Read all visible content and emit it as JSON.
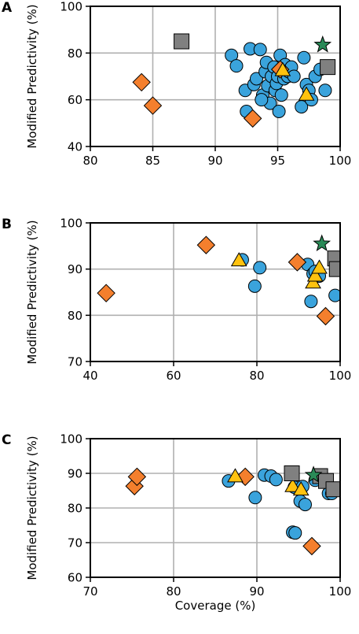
{
  "colors": {
    "circle": "#3aa3dc",
    "diamond": "#f47f2d",
    "triangle": "#ffc20f",
    "square": "#808080",
    "star": "#2a8a57",
    "grid": "#b0b0b0"
  },
  "shared": {
    "ylabel": "Modified Predictivity (%)",
    "xlabel": "Coverage (%)"
  },
  "chart_data": [
    {
      "panel": "A",
      "type": "scatter",
      "xlim": [
        80,
        100
      ],
      "ylim": [
        40,
        100
      ],
      "xticks": [
        "80",
        "85",
        "90",
        "95",
        "100"
      ],
      "yticks": [
        "40",
        "60",
        "80",
        "100"
      ],
      "grid": true,
      "series": [
        {
          "marker": "circle",
          "points": [
            [
              91.3,
              79
            ],
            [
              91.7,
              74.5
            ],
            [
              92.4,
              64
            ],
            [
              92.8,
              81.8
            ],
            [
              93.1,
              66.5
            ],
            [
              93.3,
              69
            ],
            [
              93.6,
              81.5
            ],
            [
              93.8,
              62
            ],
            [
              94.0,
              72
            ],
            [
              94.1,
              76
            ],
            [
              94.2,
              66
            ],
            [
              94.4,
              58.5
            ],
            [
              94.5,
              70
            ],
            [
              94.7,
              74
            ],
            [
              94.8,
              64
            ],
            [
              94.9,
              67
            ],
            [
              95.0,
              70
            ],
            [
              95.1,
              55
            ],
            [
              95.2,
              79
            ],
            [
              95.3,
              62
            ],
            [
              95.5,
              69
            ],
            [
              95.6,
              75
            ],
            [
              95.8,
              70
            ],
            [
              95.9,
              72
            ],
            [
              96.1,
              74
            ],
            [
              96.3,
              70
            ],
            [
              96.9,
              57
            ],
            [
              97.1,
              78
            ],
            [
              97.3,
              66.5
            ],
            [
              97.5,
              64
            ],
            [
              97.7,
              60
            ],
            [
              98.0,
              70
            ],
            [
              98.4,
              73
            ],
            [
              92.5,
              55
            ],
            [
              93.7,
              60
            ],
            [
              98.8,
              64
            ]
          ]
        },
        {
          "marker": "diamond",
          "points": [
            [
              84.1,
              67.5
            ],
            [
              85.0,
              57.5
            ],
            [
              93.0,
              52
            ],
            [
              95.2,
              73
            ]
          ]
        },
        {
          "marker": "triangle",
          "points": [
            [
              95.4,
              72.5
            ],
            [
              97.3,
              62
            ]
          ]
        },
        {
          "marker": "square",
          "points": [
            [
              87.3,
              85
            ],
            [
              99.0,
              74
            ]
          ]
        },
        {
          "marker": "star",
          "points": [
            [
              98.6,
              83.5
            ]
          ]
        }
      ]
    },
    {
      "panel": "B",
      "type": "scatter",
      "xlim": [
        40,
        100
      ],
      "ylim": [
        70,
        100
      ],
      "xticks": [
        "40",
        "60",
        "80",
        "100"
      ],
      "yticks": [
        "70",
        "80",
        "90",
        "100"
      ],
      "grid": true,
      "series": [
        {
          "marker": "circle",
          "points": [
            [
              76.5,
              92
            ],
            [
              79.5,
              86.3
            ],
            [
              80.7,
              90.3
            ],
            [
              92.2,
              91
            ],
            [
              93.0,
              83
            ],
            [
              93.5,
              89
            ],
            [
              94.0,
              89.5
            ],
            [
              95.0,
              88.5
            ],
            [
              98.8,
              84.3
            ]
          ]
        },
        {
          "marker": "diamond",
          "points": [
            [
              43.8,
              84.8
            ],
            [
              67.8,
              95.2
            ],
            [
              89.7,
              91.5
            ],
            [
              96.5,
              79.8
            ]
          ]
        },
        {
          "marker": "triangle",
          "points": [
            [
              75.7,
              91.8
            ],
            [
              93.5,
              87
            ],
            [
              94.0,
              88.5
            ],
            [
              95.0,
              90.2
            ]
          ]
        },
        {
          "marker": "square",
          "points": [
            [
              98.8,
              92.3
            ],
            [
              99.2,
              90
            ]
          ]
        },
        {
          "marker": "star",
          "points": [
            [
              95.6,
              95.5
            ]
          ]
        }
      ]
    },
    {
      "panel": "C",
      "type": "scatter",
      "xlim": [
        70,
        100
      ],
      "ylim": [
        60,
        100
      ],
      "xticks": [
        "70",
        "80",
        "90",
        "100"
      ],
      "yticks": [
        "60",
        "70",
        "80",
        "90",
        "100"
      ],
      "grid": true,
      "series": [
        {
          "marker": "circle",
          "points": [
            [
              86.6,
              87.8
            ],
            [
              89.8,
              83
            ],
            [
              90.9,
              89.5
            ],
            [
              91.7,
              89.2
            ],
            [
              92.3,
              88.2
            ],
            [
              94.3,
              73
            ],
            [
              94.6,
              72.8
            ],
            [
              94.5,
              86
            ],
            [
              95.2,
              82
            ],
            [
              95.5,
              86.2
            ],
            [
              95.8,
              81
            ],
            [
              97.0,
              88
            ],
            [
              98.6,
              84.2
            ],
            [
              99.0,
              84.2
            ]
          ]
        },
        {
          "marker": "diamond",
          "points": [
            [
              75.3,
              86.3
            ],
            [
              75.6,
              89
            ],
            [
              88.6,
              89
            ],
            [
              96.6,
              69
            ]
          ]
        },
        {
          "marker": "triangle",
          "points": [
            [
              87.4,
              89
            ],
            [
              94.3,
              86.2
            ],
            [
              95.3,
              85.2
            ]
          ]
        },
        {
          "marker": "square",
          "points": [
            [
              94.2,
              90
            ],
            [
              97.6,
              89.2
            ],
            [
              98.3,
              87.8
            ],
            [
              99.2,
              85.4
            ]
          ]
        },
        {
          "marker": "star",
          "points": [
            [
              96.8,
              89.5
            ]
          ]
        }
      ]
    }
  ]
}
